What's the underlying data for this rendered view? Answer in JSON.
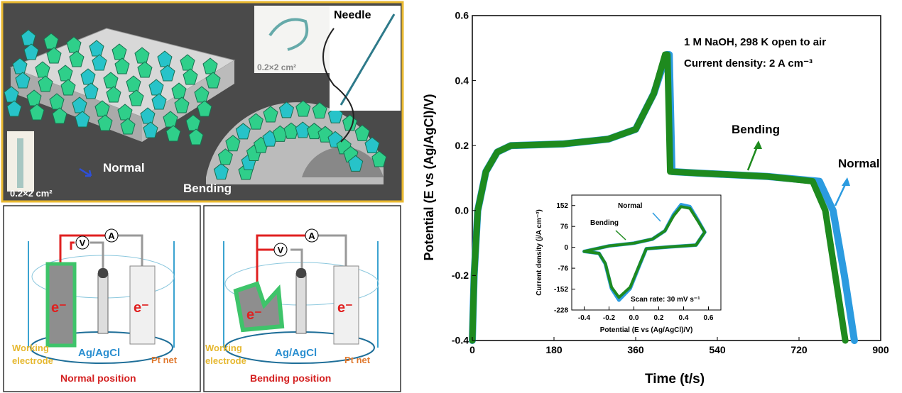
{
  "illustration": {
    "top": {
      "needle_label": "Needle",
      "size_label_1": "0.2×2 cm²",
      "size_label_2": "0.2×2 cm²",
      "normal_label": "Normal",
      "bending_label": "Bending"
    },
    "cells": [
      {
        "voltmeter": "V",
        "ammeter": "A",
        "electron": "e⁻",
        "electron2": "e⁻",
        "working": "Working",
        "electrode": "electrode",
        "reference": "Ag/AgCl",
        "counter": "Pt  net",
        "caption": "Normal position"
      },
      {
        "voltmeter": "V",
        "ammeter": "A",
        "electron": "e⁻",
        "electron2": "e⁻",
        "working": "Working",
        "electrode": "electrode",
        "reference": "Ag/AgCl",
        "counter": "Pt  net",
        "caption": "Bending position"
      }
    ]
  },
  "colors": {
    "normal": "#2b9be0",
    "bending": "#1e8a1e",
    "frame": "#e8b830"
  },
  "chart_data": [
    {
      "type": "line",
      "xlabel": "Time (t/s)",
      "ylabel": "Potential (E vs (Ag/AgCl)/V)",
      "xlim": [
        0,
        900
      ],
      "ylim": [
        -0.4,
        0.6
      ],
      "xticks": [
        "0",
        "180",
        "360",
        "540",
        "720",
        "900"
      ],
      "yticks": [
        "-0.4",
        "-0.2",
        "0.0",
        "0.2",
        "0.4",
        "0.6"
      ],
      "annotations": [
        "1 M NaOH, 298 K open to air",
        "Current density: 2 A cm⁻³"
      ],
      "series": [
        {
          "name": "Normal",
          "points": [
            [
              0,
              -0.4
            ],
            [
              4,
              -0.2
            ],
            [
              12,
              0
            ],
            [
              30,
              0.12
            ],
            [
              55,
              0.18
            ],
            [
              85,
              0.2
            ],
            [
              200,
              0.205
            ],
            [
              300,
              0.22
            ],
            [
              360,
              0.25
            ],
            [
              400,
              0.36
            ],
            [
              428,
              0.48
            ],
            [
              434,
              0.48
            ],
            [
              440,
              0.12
            ],
            [
              500,
              0.115
            ],
            [
              650,
              0.105
            ],
            [
              765,
              0.09
            ],
            [
              795,
              0
            ],
            [
              820,
              -0.2
            ],
            [
              842,
              -0.4
            ]
          ]
        },
        {
          "name": "Bending",
          "points": [
            [
              0,
              -0.4
            ],
            [
              4,
              -0.2
            ],
            [
              12,
              0
            ],
            [
              30,
              0.12
            ],
            [
              55,
              0.18
            ],
            [
              85,
              0.2
            ],
            [
              200,
              0.205
            ],
            [
              300,
              0.22
            ],
            [
              360,
              0.25
            ],
            [
              400,
              0.36
            ],
            [
              425,
              0.48
            ],
            [
              430,
              0.48
            ],
            [
              436,
              0.12
            ],
            [
              500,
              0.115
            ],
            [
              650,
              0.105
            ],
            [
              750,
              0.09
            ],
            [
              778,
              0
            ],
            [
              800,
              -0.2
            ],
            [
              822,
              -0.4
            ]
          ]
        }
      ]
    },
    {
      "type": "line",
      "xlabel": "Potential (E vs (Ag/AgCl)/V)",
      "ylabel": "Current density (j/A cm⁻³)",
      "xlim": [
        -0.5,
        0.7
      ],
      "ylim": [
        -228,
        190
      ],
      "xticks": [
        "-0.4",
        "-0.2",
        "0.0",
        "0.2",
        "0.4",
        "0.6"
      ],
      "yticks": [
        "-228",
        "-152",
        "-76",
        "0",
        "76",
        "152"
      ],
      "annotations": [
        "Scan rate: 30 mV s⁻¹"
      ],
      "series": [
        {
          "name": "Normal",
          "points": [
            [
              -0.4,
              -15
            ],
            [
              -0.2,
              5
            ],
            [
              0,
              15
            ],
            [
              0.15,
              30
            ],
            [
              0.25,
              60
            ],
            [
              0.32,
              120
            ],
            [
              0.38,
              155
            ],
            [
              0.45,
              148
            ],
            [
              0.52,
              95
            ],
            [
              0.57,
              55
            ],
            [
              0.5,
              8
            ],
            [
              0.3,
              2
            ],
            [
              0.1,
              -5
            ],
            [
              0.05,
              -60
            ],
            [
              -0.03,
              -150
            ],
            [
              -0.12,
              -192
            ],
            [
              -0.18,
              -150
            ],
            [
              -0.23,
              -60
            ],
            [
              -0.28,
              -22
            ],
            [
              -0.4,
              -15
            ]
          ]
        },
        {
          "name": "Bending",
          "points": [
            [
              -0.4,
              -15
            ],
            [
              -0.2,
              5
            ],
            [
              0,
              15
            ],
            [
              0.15,
              30
            ],
            [
              0.25,
              60
            ],
            [
              0.32,
              115
            ],
            [
              0.38,
              148
            ],
            [
              0.45,
              142
            ],
            [
              0.52,
              92
            ],
            [
              0.57,
              55
            ],
            [
              0.5,
              8
            ],
            [
              0.3,
              2
            ],
            [
              0.1,
              -5
            ],
            [
              0.05,
              -58
            ],
            [
              -0.03,
              -145
            ],
            [
              -0.12,
              -182
            ],
            [
              -0.18,
              -145
            ],
            [
              -0.23,
              -58
            ],
            [
              -0.28,
              -22
            ],
            [
              -0.4,
              -15
            ]
          ]
        }
      ],
      "legend_labels": [
        "Normal",
        "Bending"
      ]
    }
  ]
}
